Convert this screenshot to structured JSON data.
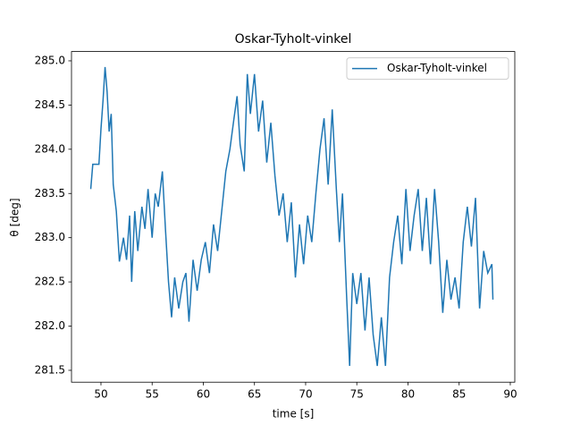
{
  "chart_data": {
    "type": "line",
    "title": "Oskar-Tyholt-vinkel",
    "x_label": "time [s]",
    "y_label": "θ [deg]",
    "x": [
      49.0,
      49.2,
      49.8,
      50.0,
      50.2,
      50.4,
      50.6,
      50.8,
      51.0,
      51.2,
      51.5,
      51.8,
      52.2,
      52.5,
      52.8,
      53.0,
      53.3,
      53.6,
      54.0,
      54.3,
      54.6,
      55.0,
      55.3,
      55.6,
      56.0,
      56.3,
      56.6,
      56.9,
      57.2,
      57.6,
      58.0,
      58.3,
      58.6,
      59.0,
      59.4,
      59.8,
      60.2,
      60.6,
      61.0,
      61.4,
      61.8,
      62.2,
      62.6,
      63.0,
      63.3,
      63.6,
      64.0,
      64.3,
      64.6,
      65.0,
      65.4,
      65.8,
      66.2,
      66.6,
      67.0,
      67.4,
      67.8,
      68.2,
      68.6,
      69.0,
      69.4,
      69.8,
      70.2,
      70.6,
      71.0,
      71.4,
      71.8,
      72.2,
      72.6,
      73.0,
      73.3,
      73.6,
      74.0,
      74.3,
      74.6,
      75.0,
      75.4,
      75.8,
      76.2,
      76.6,
      77.0,
      77.4,
      77.8,
      78.2,
      78.6,
      79.0,
      79.4,
      79.8,
      80.2,
      80.6,
      81.0,
      81.4,
      81.8,
      82.2,
      82.6,
      83.0,
      83.4,
      83.8,
      84.2,
      84.6,
      85.0,
      85.4,
      85.8,
      86.2,
      86.6,
      87.0,
      87.4,
      87.8,
      88.2,
      88.3
    ],
    "series": [
      {
        "name": "Oskar-Tyholt-vinkel",
        "color": "#1f77b4",
        "values": [
          283.55,
          283.83,
          283.83,
          284.23,
          284.55,
          284.93,
          284.65,
          284.2,
          284.4,
          283.6,
          283.3,
          282.73,
          283.0,
          282.75,
          283.25,
          282.5,
          283.3,
          282.85,
          283.35,
          283.1,
          283.55,
          283.0,
          283.5,
          283.35,
          283.75,
          283.1,
          282.5,
          282.1,
          282.55,
          282.2,
          282.5,
          282.6,
          282.05,
          282.75,
          282.4,
          282.75,
          282.95,
          282.6,
          283.15,
          282.85,
          283.3,
          283.75,
          284.0,
          284.35,
          284.6,
          284.05,
          283.75,
          284.85,
          284.4,
          284.85,
          284.2,
          284.55,
          283.85,
          284.3,
          283.7,
          283.25,
          283.5,
          282.95,
          283.4,
          282.55,
          283.15,
          282.7,
          283.25,
          282.95,
          283.5,
          284.0,
          284.35,
          283.6,
          284.45,
          283.55,
          282.95,
          283.5,
          282.35,
          281.55,
          282.6,
          282.25,
          282.6,
          281.95,
          282.55,
          281.9,
          281.55,
          282.1,
          281.55,
          282.55,
          282.95,
          283.25,
          282.7,
          283.55,
          282.85,
          283.25,
          283.55,
          282.85,
          283.45,
          282.7,
          283.55,
          282.95,
          282.15,
          282.75,
          282.3,
          282.55,
          282.2,
          282.95,
          283.35,
          282.9,
          283.45,
          282.2,
          282.85,
          282.6,
          282.7,
          282.3
        ]
      }
    ],
    "xlim": [
      47.12,
      90.44
    ],
    "xticks": [
      50,
      55,
      60,
      65,
      70,
      75,
      80,
      85,
      90
    ],
    "ylim": [
      281.366,
      285.105
    ],
    "yticks": [
      281.5,
      {
        "value": 282,
        "label": "282.0"
      },
      282.5,
      {
        "value": 283,
        "label": "283.0"
      },
      283.5,
      {
        "value": 284,
        "label": "284.0"
      },
      284.5,
      {
        "value": 285,
        "label": "285.0"
      }
    ],
    "grid": false,
    "legend": "upper right"
  }
}
